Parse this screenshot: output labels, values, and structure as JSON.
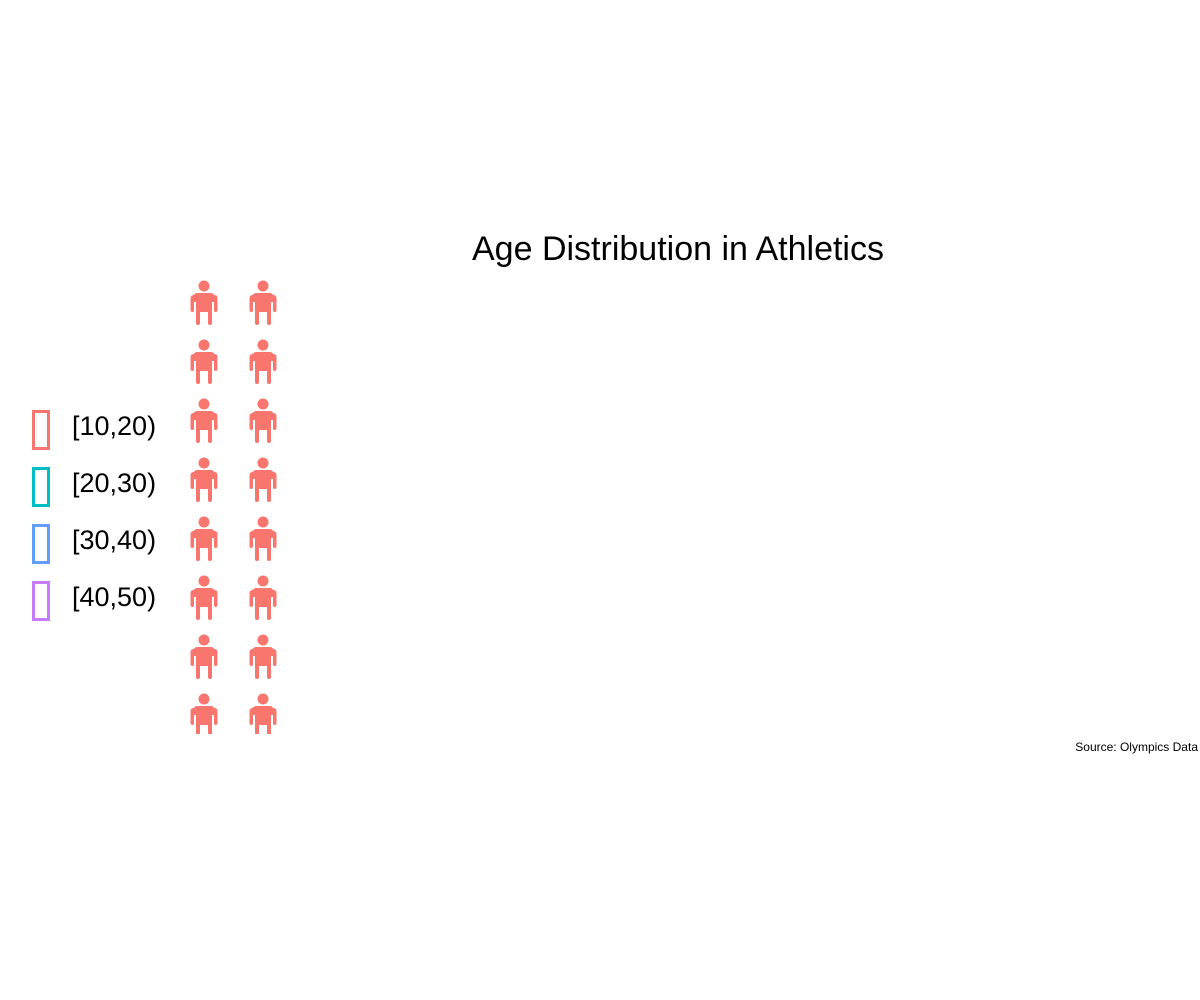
{
  "chart_data": {
    "type": "pictogram",
    "title": "Age Distribution in Athletics",
    "icon": "person-icon",
    "categories": [
      "[10,20)",
      "[20,30)",
      "[30,40)",
      "[40,50)"
    ],
    "colors": [
      "#f8766d",
      "#00bfc4",
      "#619cff",
      "#c77cff"
    ],
    "values": [
      16,
      0,
      0,
      0
    ],
    "columns": 2,
    "legend_position": "left",
    "caption": "Source: Olympics Data"
  }
}
